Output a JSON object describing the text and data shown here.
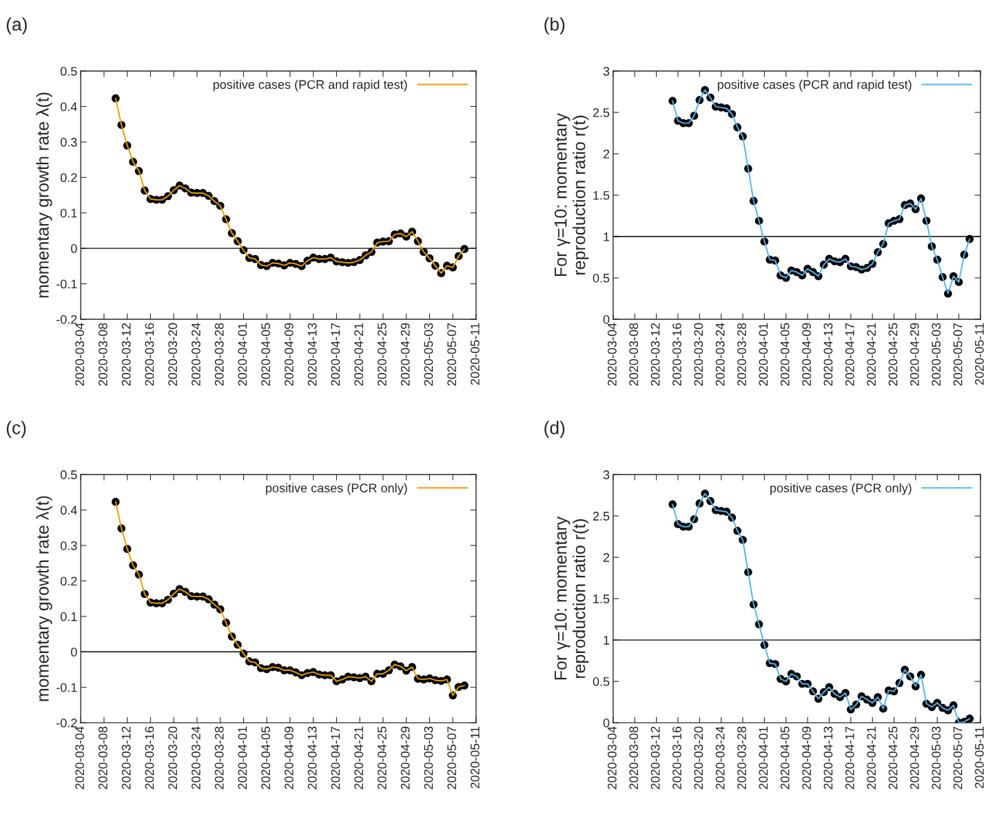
{
  "chart_data": [
    {
      "type": "line",
      "title": "(a)",
      "ylabel": "momentary growth rate λ(t)",
      "xlim": [
        "2020-03-04",
        "2020-05-11"
      ],
      "xticks": [
        "2020-03-04",
        "2020-03-08",
        "2020-03-12",
        "2020-03-16",
        "2020-03-20",
        "2020-03-24",
        "2020-03-28",
        "2020-04-01",
        "2020-04-05",
        "2020-04-09",
        "2020-04-13",
        "2020-04-17",
        "2020-04-21",
        "2020-04-25",
        "2020-04-29",
        "2020-05-03",
        "2020-05-07",
        "2020-05-11"
      ],
      "ylim": [
        -0.2,
        0.5
      ],
      "yticks": [
        -0.2,
        -0.1,
        0,
        0.1,
        0.2,
        0.3,
        0.4,
        0.5
      ],
      "legend": "top right",
      "marker": "circle",
      "line_style": "solid",
      "x": [
        "2020-03-10",
        "2020-03-11",
        "2020-03-12",
        "2020-03-13",
        "2020-03-14",
        "2020-03-15",
        "2020-03-16",
        "2020-03-17",
        "2020-03-18",
        "2020-03-19",
        "2020-03-20",
        "2020-03-21",
        "2020-03-22",
        "2020-03-23",
        "2020-03-24",
        "2020-03-25",
        "2020-03-26",
        "2020-03-27",
        "2020-03-28",
        "2020-03-29",
        "2020-03-30",
        "2020-03-31",
        "2020-04-01",
        "2020-04-02",
        "2020-04-03",
        "2020-04-04",
        "2020-04-05",
        "2020-04-06",
        "2020-04-07",
        "2020-04-08",
        "2020-04-09",
        "2020-04-10",
        "2020-04-11",
        "2020-04-12",
        "2020-04-13",
        "2020-04-14",
        "2020-04-15",
        "2020-04-16",
        "2020-04-17",
        "2020-04-18",
        "2020-04-19",
        "2020-04-20",
        "2020-04-21",
        "2020-04-22",
        "2020-04-23",
        "2020-04-24",
        "2020-04-25",
        "2020-04-26",
        "2020-04-27",
        "2020-04-28",
        "2020-04-29",
        "2020-04-30",
        "2020-05-01",
        "2020-05-02",
        "2020-05-03",
        "2020-05-04",
        "2020-05-05",
        "2020-05-06",
        "2020-05-07",
        "2020-05-08",
        "2020-05-09"
      ],
      "series": [
        {
          "name": "positive cases (PCR and rapid test)",
          "color": "#e69f00",
          "values": [
            0.423,
            0.348,
            0.29,
            0.244,
            0.218,
            0.163,
            0.139,
            0.137,
            0.137,
            0.147,
            0.164,
            0.177,
            0.169,
            0.157,
            0.156,
            0.156,
            0.148,
            0.133,
            0.12,
            0.082,
            0.043,
            0.02,
            -0.005,
            -0.027,
            -0.03,
            -0.047,
            -0.05,
            -0.041,
            -0.043,
            -0.048,
            -0.041,
            -0.044,
            -0.05,
            -0.035,
            -0.026,
            -0.03,
            -0.03,
            -0.026,
            -0.037,
            -0.039,
            -0.041,
            -0.039,
            -0.033,
            -0.02,
            -0.01,
            0.016,
            0.019,
            0.02,
            0.039,
            0.042,
            0.033,
            0.047,
            0.02,
            -0.01,
            -0.028,
            -0.049,
            -0.07,
            -0.049,
            -0.054,
            -0.022,
            -0.002
          ]
        }
      ],
      "ref_lines": [
        {
          "axis": "y",
          "value": 0,
          "color": "#000000"
        }
      ]
    },
    {
      "type": "line",
      "title": "(b)",
      "ylabel": "For γ=10: momentary\nreproduction ratio r(t)",
      "xlim": [
        "2020-03-04",
        "2020-05-11"
      ],
      "xticks": [
        "2020-03-04",
        "2020-03-08",
        "2020-03-12",
        "2020-03-16",
        "2020-03-20",
        "2020-03-24",
        "2020-03-28",
        "2020-04-01",
        "2020-04-05",
        "2020-04-09",
        "2020-04-13",
        "2020-04-17",
        "2020-04-21",
        "2020-04-25",
        "2020-04-29",
        "2020-05-03",
        "2020-05-07",
        "2020-05-11"
      ],
      "ylim": [
        0,
        3
      ],
      "yticks": [
        0,
        0.5,
        1,
        1.5,
        2,
        2.5,
        3
      ],
      "legend": "top right",
      "marker": "circle",
      "line_style": "solid",
      "x": [
        "2020-03-15",
        "2020-03-16",
        "2020-03-17",
        "2020-03-18",
        "2020-03-19",
        "2020-03-20",
        "2020-03-21",
        "2020-03-22",
        "2020-03-23",
        "2020-03-24",
        "2020-03-25",
        "2020-03-26",
        "2020-03-27",
        "2020-03-28",
        "2020-03-29",
        "2020-03-30",
        "2020-03-31",
        "2020-04-01",
        "2020-04-02",
        "2020-04-03",
        "2020-04-04",
        "2020-04-05",
        "2020-04-06",
        "2020-04-07",
        "2020-04-08",
        "2020-04-09",
        "2020-04-10",
        "2020-04-11",
        "2020-04-12",
        "2020-04-13",
        "2020-04-14",
        "2020-04-15",
        "2020-04-16",
        "2020-04-17",
        "2020-04-18",
        "2020-04-19",
        "2020-04-20",
        "2020-04-21",
        "2020-04-22",
        "2020-04-23",
        "2020-04-24",
        "2020-04-25",
        "2020-04-26",
        "2020-04-27",
        "2020-04-28",
        "2020-04-29",
        "2020-04-30",
        "2020-05-01",
        "2020-05-02",
        "2020-05-03",
        "2020-05-04",
        "2020-05-05",
        "2020-05-06",
        "2020-05-07",
        "2020-05-08",
        "2020-05-09"
      ],
      "series": [
        {
          "name": "positive cases (PCR and rapid test)",
          "color": "#56b4e9",
          "values": [
            2.64,
            2.4,
            2.37,
            2.37,
            2.46,
            2.65,
            2.77,
            2.68,
            2.57,
            2.56,
            2.55,
            2.48,
            2.32,
            2.21,
            1.82,
            1.43,
            1.19,
            0.94,
            0.72,
            0.71,
            0.53,
            0.5,
            0.59,
            0.57,
            0.53,
            0.61,
            0.57,
            0.52,
            0.66,
            0.73,
            0.7,
            0.69,
            0.73,
            0.64,
            0.63,
            0.6,
            0.62,
            0.67,
            0.81,
            0.91,
            1.16,
            1.19,
            1.21,
            1.38,
            1.4,
            1.33,
            1.46,
            1.19,
            0.88,
            0.72,
            0.51,
            0.31,
            0.52,
            0.45,
            0.78,
            0.97
          ]
        }
      ],
      "ref_lines": [
        {
          "axis": "y",
          "value": 1,
          "color": "#000000"
        }
      ]
    },
    {
      "type": "line",
      "title": "(c)",
      "ylabel": "momentary growth rate λ(t)",
      "xlim": [
        "2020-03-04",
        "2020-05-11"
      ],
      "xticks": [
        "2020-03-04",
        "2020-03-08",
        "2020-03-12",
        "2020-03-16",
        "2020-03-20",
        "2020-03-24",
        "2020-03-28",
        "2020-04-01",
        "2020-04-05",
        "2020-04-09",
        "2020-04-13",
        "2020-04-17",
        "2020-04-21",
        "2020-04-25",
        "2020-04-29",
        "2020-05-03",
        "2020-05-07",
        "2020-05-11"
      ],
      "ylim": [
        -0.2,
        0.5
      ],
      "yticks": [
        -0.2,
        -0.1,
        0,
        0.1,
        0.2,
        0.3,
        0.4,
        0.5
      ],
      "legend": "top right",
      "marker": "circle",
      "line_style": "solid",
      "x": [
        "2020-03-10",
        "2020-03-11",
        "2020-03-12",
        "2020-03-13",
        "2020-03-14",
        "2020-03-15",
        "2020-03-16",
        "2020-03-17",
        "2020-03-18",
        "2020-03-19",
        "2020-03-20",
        "2020-03-21",
        "2020-03-22",
        "2020-03-23",
        "2020-03-24",
        "2020-03-25",
        "2020-03-26",
        "2020-03-27",
        "2020-03-28",
        "2020-03-29",
        "2020-03-30",
        "2020-03-31",
        "2020-04-01",
        "2020-04-02",
        "2020-04-03",
        "2020-04-04",
        "2020-04-05",
        "2020-04-06",
        "2020-04-07",
        "2020-04-08",
        "2020-04-09",
        "2020-04-10",
        "2020-04-11",
        "2020-04-12",
        "2020-04-13",
        "2020-04-14",
        "2020-04-15",
        "2020-04-16",
        "2020-04-17",
        "2020-04-18",
        "2020-04-19",
        "2020-04-20",
        "2020-04-21",
        "2020-04-22",
        "2020-04-23",
        "2020-04-24",
        "2020-04-25",
        "2020-04-26",
        "2020-04-27",
        "2020-04-28",
        "2020-04-29",
        "2020-04-30",
        "2020-05-01",
        "2020-05-02",
        "2020-05-03",
        "2020-05-04",
        "2020-05-05",
        "2020-05-06",
        "2020-05-07",
        "2020-05-08",
        "2020-05-09"
      ],
      "series": [
        {
          "name": "positive cases (PCR only)",
          "color": "#e69f00",
          "values": [
            0.423,
            0.348,
            0.29,
            0.244,
            0.218,
            0.163,
            0.139,
            0.137,
            0.137,
            0.147,
            0.164,
            0.177,
            0.169,
            0.157,
            0.156,
            0.156,
            0.148,
            0.133,
            0.12,
            0.082,
            0.043,
            0.02,
            -0.005,
            -0.027,
            -0.03,
            -0.046,
            -0.049,
            -0.043,
            -0.045,
            -0.052,
            -0.052,
            -0.058,
            -0.066,
            -0.06,
            -0.057,
            -0.064,
            -0.066,
            -0.066,
            -0.083,
            -0.078,
            -0.07,
            -0.072,
            -0.074,
            -0.07,
            -0.083,
            -0.062,
            -0.062,
            -0.052,
            -0.036,
            -0.041,
            -0.053,
            -0.043,
            -0.076,
            -0.078,
            -0.075,
            -0.08,
            -0.082,
            -0.078,
            -0.123,
            -0.099,
            -0.095
          ]
        }
      ],
      "ref_lines": [
        {
          "axis": "y",
          "value": 0,
          "color": "#000000"
        }
      ]
    },
    {
      "type": "line",
      "title": "(d)",
      "ylabel": "For γ=10: momentary\nreproduction ratio r(t)",
      "xlim": [
        "2020-03-04",
        "2020-05-11"
      ],
      "xticks": [
        "2020-03-04",
        "2020-03-08",
        "2020-03-12",
        "2020-03-16",
        "2020-03-20",
        "2020-03-24",
        "2020-03-28",
        "2020-04-01",
        "2020-04-05",
        "2020-04-09",
        "2020-04-13",
        "2020-04-17",
        "2020-04-21",
        "2020-04-25",
        "2020-04-29",
        "2020-05-03",
        "2020-05-07",
        "2020-05-11"
      ],
      "ylim": [
        0,
        3
      ],
      "yticks": [
        0,
        0.5,
        1,
        1.5,
        2,
        2.5,
        3
      ],
      "legend": "top right",
      "marker": "circle",
      "line_style": "solid",
      "x": [
        "2020-03-15",
        "2020-03-16",
        "2020-03-17",
        "2020-03-18",
        "2020-03-19",
        "2020-03-20",
        "2020-03-21",
        "2020-03-22",
        "2020-03-23",
        "2020-03-24",
        "2020-03-25",
        "2020-03-26",
        "2020-03-27",
        "2020-03-28",
        "2020-03-29",
        "2020-03-30",
        "2020-03-31",
        "2020-04-01",
        "2020-04-02",
        "2020-04-03",
        "2020-04-04",
        "2020-04-05",
        "2020-04-06",
        "2020-04-07",
        "2020-04-08",
        "2020-04-09",
        "2020-04-10",
        "2020-04-11",
        "2020-04-12",
        "2020-04-13",
        "2020-04-14",
        "2020-04-15",
        "2020-04-16",
        "2020-04-17",
        "2020-04-18",
        "2020-04-19",
        "2020-04-20",
        "2020-04-21",
        "2020-04-22",
        "2020-04-23",
        "2020-04-24",
        "2020-04-25",
        "2020-04-26",
        "2020-04-27",
        "2020-04-28",
        "2020-04-29",
        "2020-04-30",
        "2020-05-01",
        "2020-05-02",
        "2020-05-03",
        "2020-05-04",
        "2020-05-05",
        "2020-05-06",
        "2020-05-07",
        "2020-05-08",
        "2020-05-09"
      ],
      "series": [
        {
          "name": "positive cases (PCR only)",
          "color": "#56b4e9",
          "values": [
            2.64,
            2.4,
            2.37,
            2.37,
            2.46,
            2.65,
            2.77,
            2.68,
            2.57,
            2.56,
            2.55,
            2.48,
            2.32,
            2.21,
            1.82,
            1.43,
            1.19,
            0.94,
            0.72,
            0.71,
            0.53,
            0.5,
            0.59,
            0.56,
            0.47,
            0.47,
            0.38,
            0.29,
            0.37,
            0.43,
            0.35,
            0.31,
            0.36,
            0.16,
            0.22,
            0.32,
            0.28,
            0.24,
            0.31,
            0.17,
            0.39,
            0.38,
            0.48,
            0.64,
            0.56,
            0.44,
            0.58,
            0.23,
            0.19,
            0.24,
            0.18,
            0.15,
            0.21,
            0.0,
            0.01,
            0.05
          ]
        }
      ],
      "ref_lines": [
        {
          "axis": "y",
          "value": 1,
          "color": "#000000"
        }
      ]
    }
  ]
}
